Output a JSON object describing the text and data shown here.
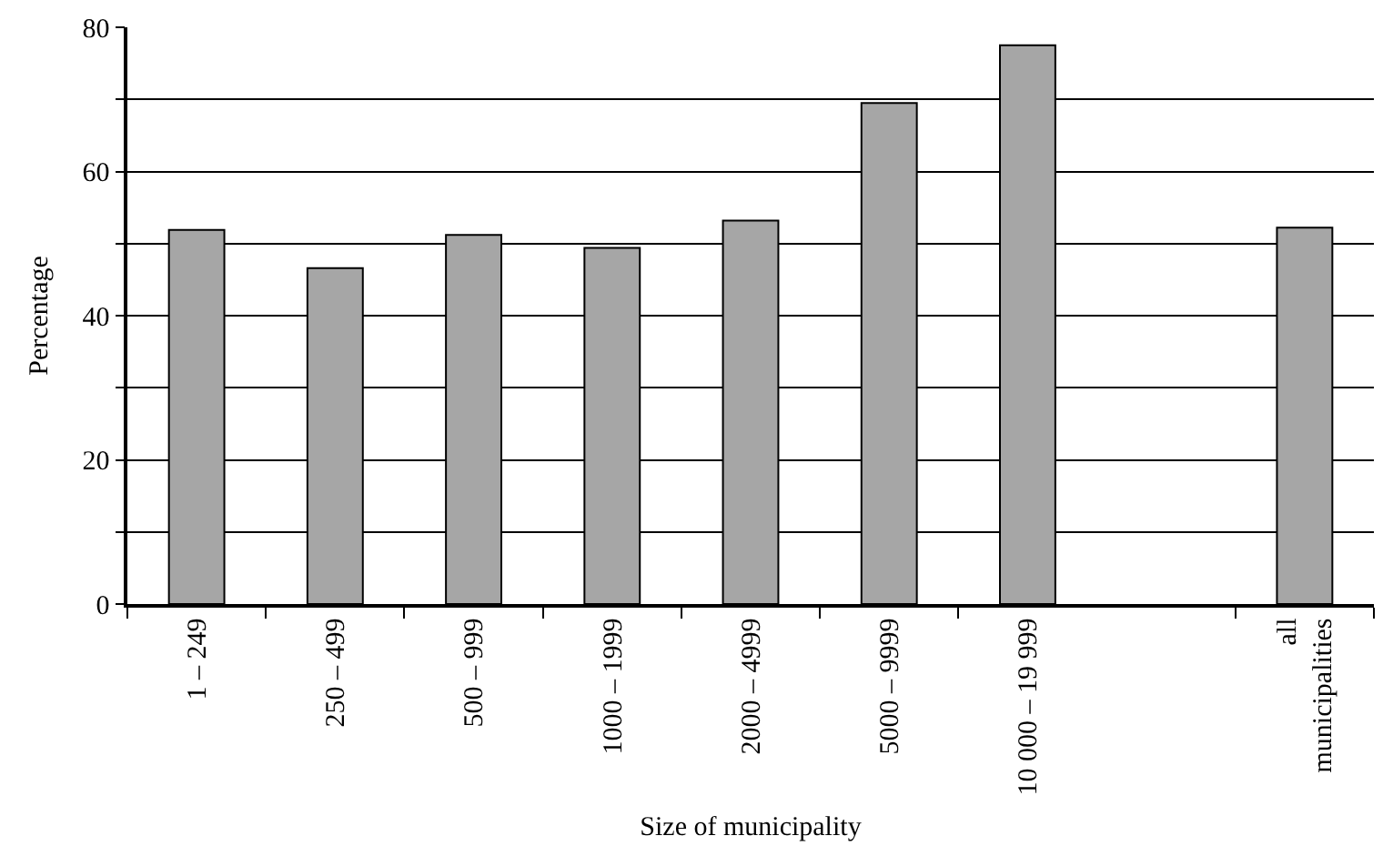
{
  "chart_data": {
    "type": "bar",
    "xlabel": "Size of municipality",
    "ylabel": "Percentage",
    "categories": [
      "1 – 249",
      "250 – 499",
      "500 – 999",
      "1000 – 1999",
      "2000 – 4999",
      "5000 – 9999",
      "10 000 – 19 999",
      null,
      "all municipalities"
    ],
    "values": [
      51.9,
      46.6,
      51.2,
      49.4,
      53.2,
      69.5,
      77.5,
      null,
      52.2
    ],
    "color": "#a6a6a6",
    "ylim": [
      0,
      80
    ],
    "yticks": [
      0,
      {
        "value": 10,
        "label": null
      },
      20,
      {
        "value": 30,
        "label": null
      },
      40,
      {
        "value": 50,
        "label": null
      },
      60,
      {
        "value": 70,
        "label": null
      },
      80
    ],
    "grid": "y",
    "legend": false
  }
}
